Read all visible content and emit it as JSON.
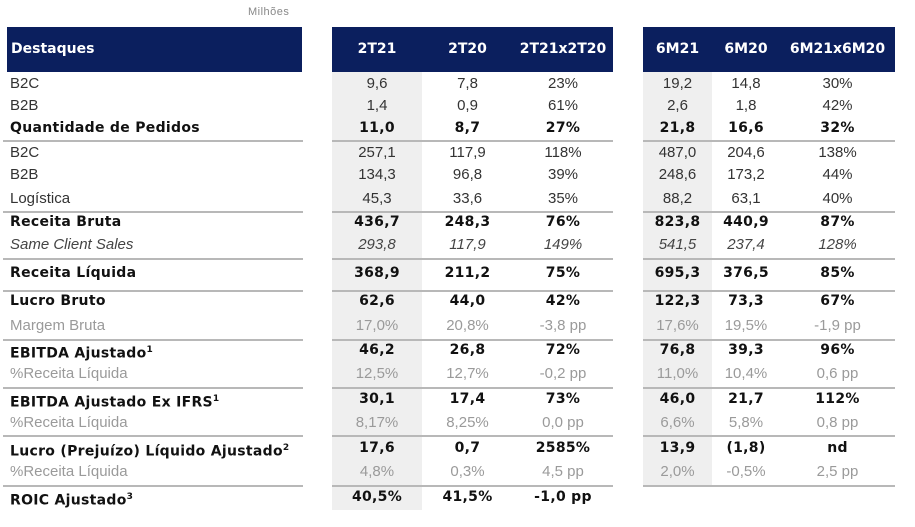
{
  "units": "Milhões",
  "header": {
    "label": "Destaques",
    "quarter_cols": [
      "2T21",
      "2T20",
      "2T21x2T20"
    ],
    "semester_cols": [
      "6M21",
      "6M20",
      "6M21x6M20"
    ]
  },
  "rows": [
    {
      "label": "B2C",
      "sup": "",
      "style": "normal",
      "q": [
        "9,6",
        "7,8",
        "23%"
      ],
      "s": [
        "19,2",
        "14,8",
        "30%"
      ]
    },
    {
      "label": "B2B",
      "sup": "",
      "style": "normal",
      "q": [
        "1,4",
        "0,9",
        "61%"
      ],
      "s": [
        "2,6",
        "1,8",
        "42%"
      ]
    },
    {
      "label": "Quantidade de Pedidos",
      "sup": "",
      "style": "bold",
      "q": [
        "11,0",
        "8,7",
        "27%"
      ],
      "s": [
        "21,8",
        "16,6",
        "32%"
      ]
    },
    {
      "label": "B2C",
      "sup": "",
      "style": "normal",
      "q": [
        "257,1",
        "117,9",
        "118%"
      ],
      "s": [
        "487,0",
        "204,6",
        "138%"
      ]
    },
    {
      "label": "B2B",
      "sup": "",
      "style": "normal",
      "q": [
        "134,3",
        "96,8",
        "39%"
      ],
      "s": [
        "248,6",
        "173,2",
        "44%"
      ]
    },
    {
      "label": "Logística",
      "sup": "",
      "style": "normal",
      "q": [
        "45,3",
        "33,6",
        "35%"
      ],
      "s": [
        "88,2",
        "63,1",
        "40%"
      ]
    },
    {
      "label": "Receita Bruta",
      "sup": "",
      "style": "bold",
      "q": [
        "436,7",
        "248,3",
        "76%"
      ],
      "s": [
        "823,8",
        "440,9",
        "87%"
      ]
    },
    {
      "label": "Same Client Sales",
      "sup": "",
      "style": "italic",
      "q": [
        "293,8",
        "117,9",
        "149%"
      ],
      "s": [
        "541,5",
        "237,4",
        "128%"
      ]
    },
    {
      "label": "Receita Líquida",
      "sup": "",
      "style": "bold",
      "q": [
        "368,9",
        "211,2",
        "75%"
      ],
      "s": [
        "695,3",
        "376,5",
        "85%"
      ]
    },
    {
      "label": "Lucro Bruto",
      "sup": "",
      "style": "bold",
      "q": [
        "62,6",
        "44,0",
        "42%"
      ],
      "s": [
        "122,3",
        "73,3",
        "67%"
      ]
    },
    {
      "label": "Margem Bruta",
      "sup": "",
      "style": "grey",
      "q": [
        "17,0%",
        "20,8%",
        "-3,8 pp"
      ],
      "s": [
        "17,6%",
        "19,5%",
        "-1,9 pp"
      ]
    },
    {
      "label": "EBITDA Ajustado",
      "sup": "1",
      "style": "bold",
      "q": [
        "46,2",
        "26,8",
        "72%"
      ],
      "s": [
        "76,8",
        "39,3",
        "96%"
      ]
    },
    {
      "label": "%Receita Líquida",
      "sup": "",
      "style": "grey",
      "q": [
        "12,5%",
        "12,7%",
        "-0,2 pp"
      ],
      "s": [
        "11,0%",
        "10,4%",
        "0,6 pp"
      ]
    },
    {
      "label": "EBITDA Ajustado Ex IFRS",
      "sup": "1",
      "style": "bold",
      "q": [
        "30,1",
        "17,4",
        "73%"
      ],
      "s": [
        "46,0",
        "21,7",
        "112%"
      ]
    },
    {
      "label": "%Receita Líquida",
      "sup": "",
      "style": "grey",
      "q": [
        "8,17%",
        "8,25%",
        "0,0 pp"
      ],
      "s": [
        "6,6%",
        "5,8%",
        "0,8 pp"
      ]
    },
    {
      "label": "Lucro (Prejuízo) Líquido Ajustado",
      "sup": "2",
      "style": "bold",
      "q": [
        "17,6",
        "0,7",
        "2585%"
      ],
      "s": [
        "13,9",
        "(1,8)",
        "nd"
      ]
    },
    {
      "label": "%Receita Líquida",
      "sup": "",
      "style": "grey",
      "q": [
        "4,8%",
        "0,3%",
        "4,5 pp"
      ],
      "s": [
        "2,0%",
        "-0,5%",
        "2,5 pp"
      ]
    },
    {
      "label": "ROIC Ajustado",
      "sup": "3",
      "style": "bold",
      "q": [
        "40,5%",
        "41,5%",
        "-1,0 pp"
      ],
      "s": null
    }
  ]
}
